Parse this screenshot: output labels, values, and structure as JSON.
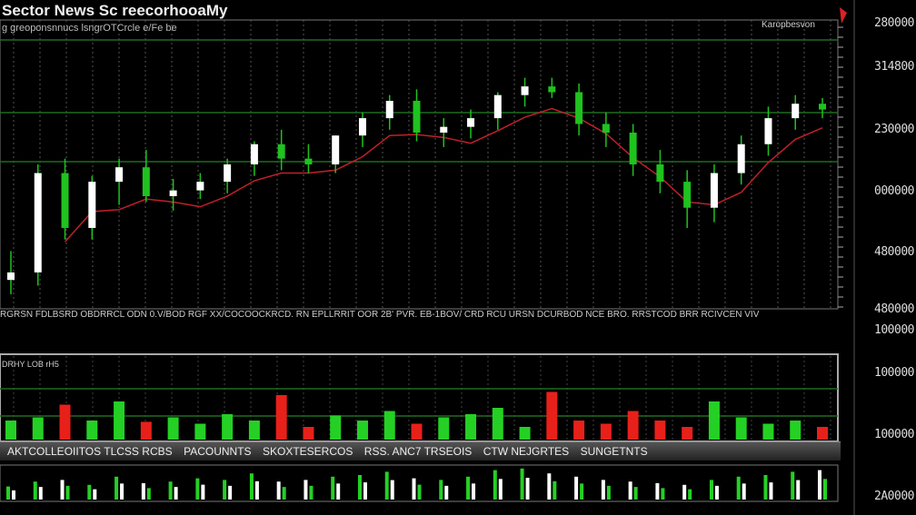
{
  "header": {
    "title": "Sector News Sc reecorhooaMy",
    "subtitle": "g greoponsnnucs lsngrOTCrcle e/Fe be",
    "indicator_label": "Karopbesvon"
  },
  "price_axis_labels": [
    "280000",
    "314800",
    "230000",
    "000000",
    "480000",
    "480000",
    "100000"
  ],
  "volume_axis_labels": [
    "100000",
    "100000"
  ],
  "lower_axis_labels": [
    "2A0000"
  ],
  "date_row": "RGRSN FDLBSRD OBDRRCL ODN 0.V/BOD RGF XX/COCOOCKRCD. RN EPLLRRIT OOR 2B' PVR. EB-1BOV/ CRD RCU URSN DCURBOD NCE BRO. RRSTCOD BRR RCIVCEN VIV",
  "volume_panel_label": "DRHY LOB rH5",
  "menu_items": [
    "AKTCOLLEOIITOS TLCSS RCBS",
    "PACOUNNTS",
    "SKOXTESERCOS",
    "RSS. ANC7 TRSEOIS",
    "CTW NEJGRTES",
    "SUNGETNTS"
  ],
  "colors": {
    "up": "#ffffff",
    "down": "#1fc21f",
    "ma": "#c0202a",
    "vol_up": "#25d025",
    "vol_down": "#e8201a",
    "grid": "#1f6a1f"
  },
  "chart_data": {
    "type": "candlestick",
    "ylim": [
      0,
      100
    ],
    "grid": true,
    "open": [
      10,
      12.6,
      47,
      28,
      44,
      49,
      39,
      41,
      44,
      50,
      57,
      52,
      50,
      60,
      66,
      72,
      61,
      63,
      66,
      74,
      77,
      75,
      64,
      61,
      50,
      44,
      35,
      47,
      57,
      66,
      71
    ],
    "high": [
      20,
      50,
      52,
      46,
      52,
      55,
      45,
      47,
      52,
      58,
      62,
      57,
      60,
      68,
      74,
      76,
      66,
      69,
      75,
      80,
      80,
      78,
      68,
      64,
      55,
      48,
      50,
      60,
      70,
      74,
      73
    ],
    "low": [
      5,
      8,
      24,
      24,
      36,
      37,
      34,
      38,
      40,
      46,
      48,
      47,
      47,
      56,
      62,
      58,
      56,
      59,
      62,
      70,
      73,
      60,
      56,
      46,
      40,
      28,
      30,
      43,
      53,
      62,
      66
    ],
    "close": [
      12.6,
      47,
      28,
      44,
      49,
      39,
      41,
      44,
      50,
      57,
      52,
      50,
      60,
      66,
      72,
      61,
      63,
      66,
      74,
      77,
      75,
      64,
      61,
      50,
      44,
      35,
      47,
      57,
      66,
      71,
      69
    ],
    "volume": [
      30,
      35,
      55,
      30,
      60,
      28,
      35,
      25,
      40,
      30,
      70,
      20,
      38,
      30,
      45,
      25,
      35,
      40,
      50,
      20,
      75,
      30,
      25,
      45,
      30,
      20,
      60,
      35,
      25,
      30,
      20
    ],
    "lower_volume": [
      40,
      55,
      60,
      45,
      70,
      50,
      55,
      65,
      60,
      80,
      55,
      60,
      70,
      75,
      85,
      65,
      60,
      70,
      90,
      95,
      80,
      70,
      60,
      55,
      50,
      45,
      60,
      70,
      75,
      85,
      90
    ]
  }
}
